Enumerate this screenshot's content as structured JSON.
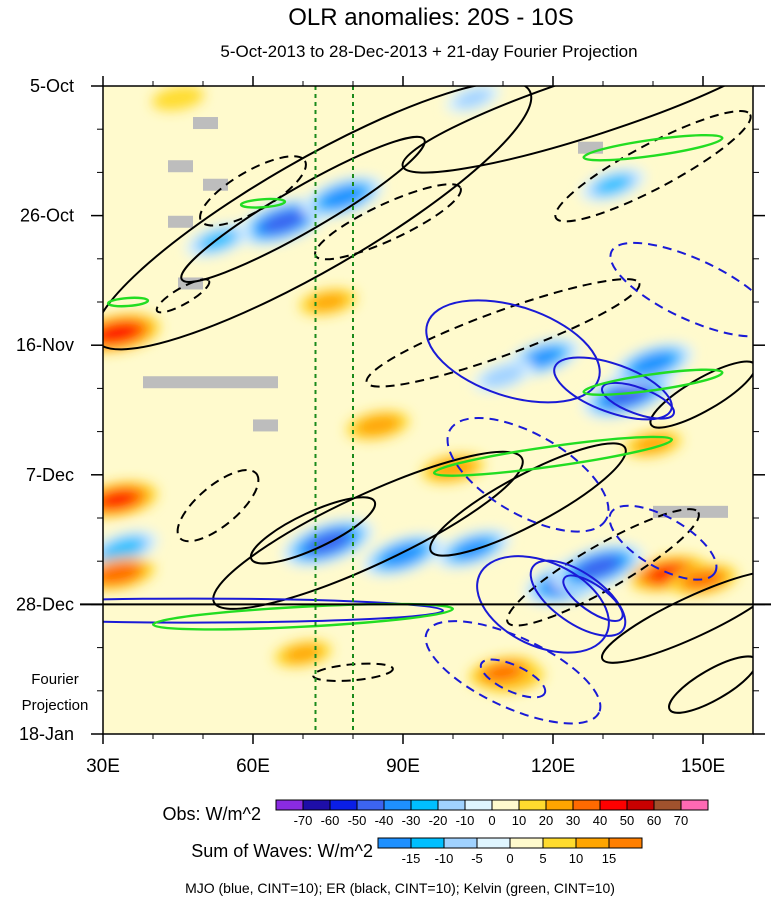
{
  "chart_data": {
    "type": "heatmap",
    "title": "OLR anomalies: 20S - 10S",
    "subtitle": "5-Oct-2013 to 28-Dec-2013 + 21-day Fourier Projection",
    "x_axis": {
      "range": [
        30,
        160
      ],
      "ticks": [
        {
          "value": 30,
          "label": "30E"
        },
        {
          "value": 60,
          "label": "60E"
        },
        {
          "value": 90,
          "label": "90E"
        },
        {
          "value": 120,
          "label": "120E"
        },
        {
          "value": 150,
          "label": "150E"
        }
      ]
    },
    "y_axis": {
      "range_days": [
        0,
        105
      ],
      "ticks": [
        {
          "day": 0,
          "label": "5-Oct"
        },
        {
          "day": 21,
          "label": "26-Oct"
        },
        {
          "day": 42,
          "label": "16-Nov"
        },
        {
          "day": 63,
          "label": "7-Dec"
        },
        {
          "day": 84,
          "label": "28-Dec"
        },
        {
          "day": 105,
          "label": "18-Jan"
        }
      ],
      "forecast_label": "Fourier Projection"
    },
    "projection_start_day": 84,
    "reference_longitudes": [
      72.5,
      80
    ],
    "anomaly_blobs": [
      {
        "lon": 66,
        "day": 22,
        "value": -55
      },
      {
        "lon": 78,
        "day": 18,
        "value": -45
      },
      {
        "lon": 53,
        "day": 25,
        "value": -30
      },
      {
        "lon": 75,
        "day": 74,
        "value": -55
      },
      {
        "lon": 90,
        "day": 76,
        "value": -45
      },
      {
        "lon": 104,
        "day": 75,
        "value": -40
      },
      {
        "lon": 124,
        "day": 80,
        "value": -60
      },
      {
        "lon": 129,
        "day": 78,
        "value": -55
      },
      {
        "lon": 118,
        "day": 44,
        "value": -40
      },
      {
        "lon": 135,
        "day": 50,
        "value": -55
      },
      {
        "lon": 140,
        "day": 45,
        "value": -45
      },
      {
        "lon": 110,
        "day": 47,
        "value": -25
      },
      {
        "lon": 132,
        "day": 16,
        "value": -30
      },
      {
        "lon": 104,
        "day": 2,
        "value": -20
      },
      {
        "lon": 34,
        "day": 75,
        "value": -35
      },
      {
        "lon": 33,
        "day": 40,
        "value": 45
      },
      {
        "lon": 33,
        "day": 67,
        "value": 40
      },
      {
        "lon": 33,
        "day": 79,
        "value": 35
      },
      {
        "lon": 143,
        "day": 79,
        "value": 40
      },
      {
        "lon": 150,
        "day": 80,
        "value": 30
      },
      {
        "lon": 85,
        "day": 55,
        "value": 25
      },
      {
        "lon": 100,
        "day": 62,
        "value": 25
      },
      {
        "lon": 75,
        "day": 35,
        "value": 20
      },
      {
        "lon": 70,
        "day": 92,
        "value": 20
      },
      {
        "lon": 112,
        "day": 96,
        "value": 25
      },
      {
        "lon": 110,
        "day": 95,
        "value": 30
      },
      {
        "lon": 45,
        "day": 2,
        "value": 15
      },
      {
        "lon": 140,
        "day": 58,
        "value": 20
      }
    ],
    "missing_data_spans": [
      {
        "lon_start": 48,
        "lon_end": 53,
        "day": 6
      },
      {
        "lon_start": 43,
        "lon_end": 48,
        "day": 13
      },
      {
        "lon_start": 50,
        "lon_end": 55,
        "day": 16
      },
      {
        "lon_start": 43,
        "lon_end": 48,
        "day": 22
      },
      {
        "lon_start": 45,
        "lon_end": 50,
        "day": 32
      },
      {
        "lon_start": 38,
        "lon_end": 65,
        "day": 48
      },
      {
        "lon_start": 60,
        "lon_end": 65,
        "day": 55
      },
      {
        "lon_start": 125,
        "lon_end": 130,
        "day": 10
      },
      {
        "lon_start": 140,
        "lon_end": 155,
        "day": 69
      }
    ],
    "waves": [
      {
        "type": "ER",
        "lon": 70,
        "day": 20,
        "angle": -30,
        "rx": 140,
        "ry": 22,
        "value": -10
      },
      {
        "type": "ER",
        "lon": 72,
        "day": 21,
        "angle": -30,
        "rx": 250,
        "ry": 55,
        "value": -10
      },
      {
        "type": "ER",
        "lon": 128,
        "day": 3,
        "angle": -18,
        "rx": 200,
        "ry": 30,
        "value": -10
      },
      {
        "type": "ER",
        "lon": 60,
        "day": 17,
        "angle": -30,
        "rx": 60,
        "ry": 20,
        "value": 10
      },
      {
        "type": "ER",
        "lon": 87,
        "day": 22,
        "angle": -25,
        "rx": 80,
        "ry": 18,
        "value": 10
      },
      {
        "type": "ER",
        "lon": 140,
        "day": 13,
        "angle": -28,
        "rx": 110,
        "ry": 22,
        "value": 10
      },
      {
        "type": "ER",
        "lon": 110,
        "day": 40,
        "angle": -20,
        "rx": 145,
        "ry": 22,
        "value": 10
      },
      {
        "type": "ER",
        "lon": 53,
        "day": 68,
        "angle": -40,
        "rx": 50,
        "ry": 20,
        "value": 10
      },
      {
        "type": "ER",
        "lon": 72,
        "day": 72,
        "angle": -25,
        "rx": 68,
        "ry": 18,
        "value": -10
      },
      {
        "type": "ER",
        "lon": 83,
        "day": 72,
        "angle": -25,
        "rx": 170,
        "ry": 35,
        "value": -10
      },
      {
        "type": "ER",
        "lon": 115,
        "day": 67,
        "angle": -28,
        "rx": 110,
        "ry": 25,
        "value": -10
      },
      {
        "type": "ER",
        "lon": 130,
        "day": 78,
        "angle": -30,
        "rx": 110,
        "ry": 22,
        "value": 10
      },
      {
        "type": "ER",
        "lon": 148,
        "day": 86,
        "angle": -25,
        "rx": 100,
        "ry": 20,
        "value": -10
      },
      {
        "type": "ER",
        "lon": 80,
        "day": 95,
        "angle": -5,
        "rx": 40,
        "ry": 8,
        "value": 10
      },
      {
        "type": "ER",
        "lon": 150,
        "day": 50,
        "angle": -30,
        "rx": 60,
        "ry": 16,
        "value": -10
      },
      {
        "type": "ER",
        "lon": 152,
        "day": 97,
        "angle": -30,
        "rx": 50,
        "ry": 15,
        "value": -10
      },
      {
        "type": "ER",
        "lon": 46,
        "day": 34,
        "angle": -30,
        "rx": 30,
        "ry": 8,
        "value": 10
      },
      {
        "type": "MJO",
        "lon": 112,
        "day": 43,
        "angle": 18,
        "rx": 90,
        "ry": 45,
        "value": -10
      },
      {
        "type": "MJO",
        "lon": 132,
        "day": 49,
        "angle": 20,
        "rx": 62,
        "ry": 24,
        "value": -10
      },
      {
        "type": "MJO",
        "lon": 137,
        "day": 51,
        "angle": 20,
        "rx": 38,
        "ry": 13,
        "value": -10
      },
      {
        "type": "MJO",
        "lon": 148,
        "day": 33,
        "angle": 25,
        "rx": 90,
        "ry": 30,
        "value": 10
      },
      {
        "type": "MJO",
        "lon": 115,
        "day": 63,
        "angle": 30,
        "rx": 90,
        "ry": 40,
        "value": 10
      },
      {
        "type": "MJO",
        "lon": 118,
        "day": 84,
        "angle": 25,
        "rx": 70,
        "ry": 42,
        "value": -10
      },
      {
        "type": "MJO",
        "lon": 125,
        "day": 83,
        "angle": 35,
        "rx": 55,
        "ry": 25,
        "value": -10
      },
      {
        "type": "MJO",
        "lon": 128,
        "day": 83,
        "angle": 35,
        "rx": 35,
        "ry": 13,
        "value": -10
      },
      {
        "type": "MJO",
        "lon": 112,
        "day": 95,
        "angle": 25,
        "rx": 95,
        "ry": 35,
        "value": 10
      },
      {
        "type": "MJO",
        "lon": 112,
        "day": 96,
        "angle": 25,
        "rx": 35,
        "ry": 13,
        "value": 10
      },
      {
        "type": "MJO",
        "lon": 142,
        "day": 74,
        "angle": 30,
        "rx": 60,
        "ry": 25,
        "value": 10
      },
      {
        "type": "MJO",
        "lon": 48,
        "day": 85,
        "angle": 0,
        "rx": 250,
        "ry": 12,
        "value": -10
      },
      {
        "type": "Kelvin",
        "lon": 140,
        "day": 10,
        "angle": -8,
        "rx": 70,
        "ry": 8,
        "value": -10
      },
      {
        "type": "Kelvin",
        "lon": 140,
        "day": 48,
        "angle": -8,
        "rx": 70,
        "ry": 8,
        "value": -10
      },
      {
        "type": "Kelvin",
        "lon": 120,
        "day": 60,
        "angle": -8,
        "rx": 120,
        "ry": 10,
        "value": -10
      },
      {
        "type": "Kelvin",
        "lon": 70,
        "day": 86,
        "angle": -3,
        "rx": 150,
        "ry": 10,
        "value": -10
      },
      {
        "type": "Kelvin",
        "lon": 62,
        "day": 19,
        "angle": -4,
        "rx": 22,
        "ry": 4,
        "value": -10
      },
      {
        "type": "Kelvin",
        "lon": 35,
        "day": 35,
        "angle": -4,
        "rx": 20,
        "ry": 4,
        "value": -10
      }
    ]
  },
  "legend_obs": {
    "label": "Obs: W/m^2",
    "levels": [
      "-70",
      "-60",
      "-50",
      "-40",
      "-30",
      "-20",
      "-10",
      "0",
      "10",
      "20",
      "30",
      "40",
      "50",
      "60",
      "70"
    ],
    "colors": [
      "#8a2be2",
      "#1e0ea8",
      "#0a1ee6",
      "#3c64f0",
      "#1e90ff",
      "#00bfff",
      "#a0d2ff",
      "#dff5ff",
      "#fffacd",
      "#ffdb2e",
      "#ffa500",
      "#ff6a00",
      "#ff0000",
      "#c80000",
      "#a0522d",
      "#ff69b4"
    ]
  },
  "legend_waves": {
    "label": "Sum of Waves: W/m^2",
    "levels": [
      "-15",
      "-10",
      "-5",
      "0",
      "5",
      "10",
      "15"
    ],
    "colors": [
      "#1e90ff",
      "#00bfff",
      "#a0d2ff",
      "#dff5ff",
      "#fffacd",
      "#ffdb2e",
      "#ffa500",
      "#ff7f00"
    ]
  },
  "wave_styles": {
    "MJO": "#1a1ad6",
    "ER": "#000000",
    "Kelvin": "#22dd22"
  },
  "caption": "MJO (blue, CINT=10); ER (black, CINT=10); Kelvin (green, CINT=10)"
}
